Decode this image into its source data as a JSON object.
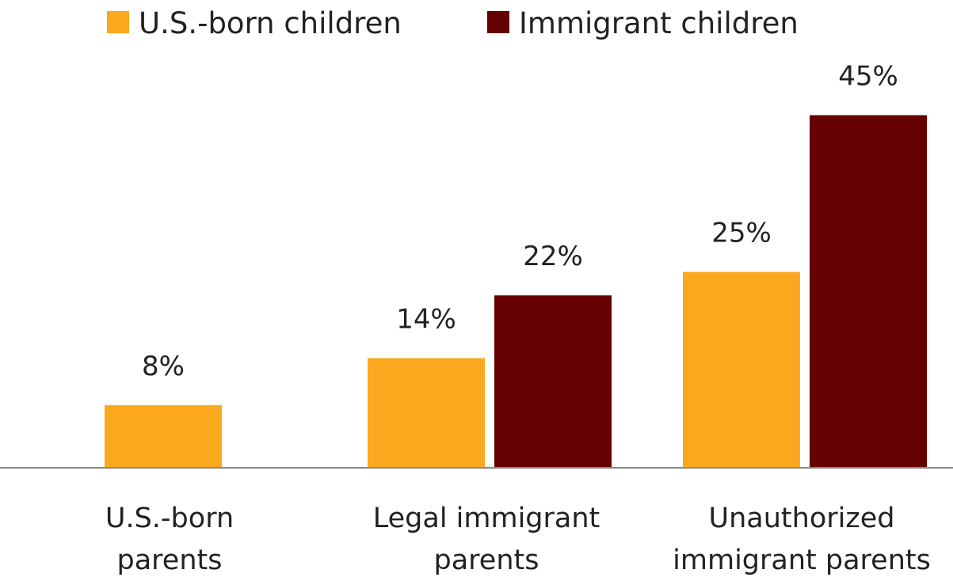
{
  "chart_data": {
    "type": "bar",
    "categories": [
      [
        "U.S.-born",
        "parents"
      ],
      [
        "Legal immigrant",
        "parents"
      ],
      [
        "Unauthorized",
        "immigrant parents"
      ]
    ],
    "series": [
      {
        "name": "U.S.-born children",
        "color": "#FBA81F",
        "values": [
          8,
          14,
          25
        ],
        "labels": [
          "8%",
          "14%",
          "25%"
        ]
      },
      {
        "name": "Immigrant children",
        "color": "#660000",
        "values": [
          null,
          22,
          45
        ],
        "labels": [
          null,
          "22%",
          "45%"
        ]
      }
    ],
    "unit": "%",
    "ylim": [
      0,
      50
    ],
    "grid": false,
    "legend_position": "top-left",
    "axis_color": "#8a8a8a"
  }
}
